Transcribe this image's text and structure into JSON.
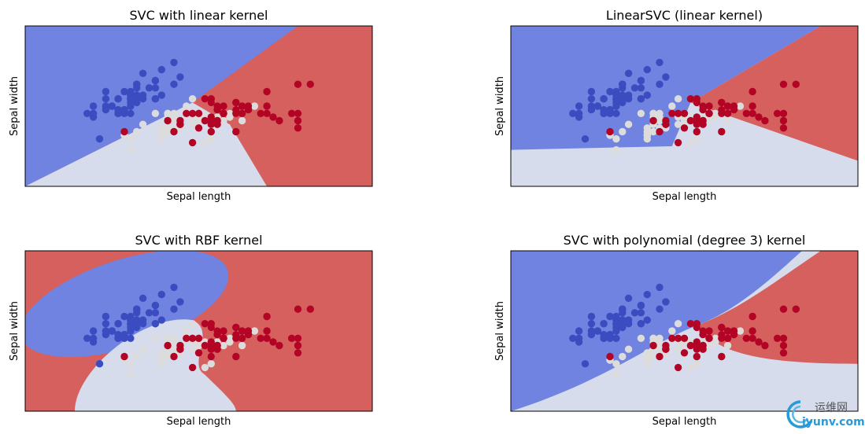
{
  "chart_data": [
    {
      "type": "scatter",
      "title": "SVC with linear kernel",
      "xlabel": "Sepal length",
      "ylabel": "Sepal width",
      "ticks_visible": false,
      "grid": false,
      "xlim": [
        3.3,
        8.9
      ],
      "ylim": [
        1.0,
        5.4
      ],
      "background": "decision-regions",
      "boundaries": [
        {
          "from": "setosa",
          "to": "versicolor",
          "points": [
            [
              3.3,
              1.0
            ],
            [
              6.0,
              3.3
            ]
          ]
        },
        {
          "from": "setosa",
          "to": "virginica",
          "points": [
            [
              6.0,
              3.3
            ],
            [
              7.7,
              5.4
            ]
          ]
        },
        {
          "from": "versicolor",
          "to": "virginica",
          "points": [
            [
              6.0,
              3.3
            ],
            [
              6.6,
              2.7
            ],
            [
              7.2,
              1.0
            ]
          ]
        }
      ]
    },
    {
      "type": "scatter",
      "title": "LinearSVC (linear kernel)",
      "xlabel": "Sepal length",
      "ylabel": "Sepal width",
      "ticks_visible": false,
      "grid": false,
      "xlim": [
        3.3,
        8.9
      ],
      "ylim": [
        1.0,
        5.4
      ],
      "background": "decision-regions",
      "boundaries": [
        {
          "from": "setosa",
          "to": "versicolor",
          "points": [
            [
              3.3,
              2.0
            ],
            [
              5.9,
              2.1
            ],
            [
              6.2,
              3.3
            ]
          ]
        },
        {
          "from": "setosa",
          "to": "virginica",
          "points": [
            [
              6.2,
              3.3
            ],
            [
              8.3,
              5.4
            ]
          ]
        },
        {
          "from": "versicolor",
          "to": "virginica",
          "points": [
            [
              6.2,
              3.3
            ],
            [
              8.9,
              1.7
            ]
          ]
        }
      ]
    },
    {
      "type": "scatter",
      "title": "SVC with RBF kernel",
      "xlabel": "Sepal length",
      "ylabel": "Sepal width",
      "ticks_visible": false,
      "grid": false,
      "xlim": [
        3.3,
        8.9
      ],
      "ylim": [
        1.0,
        5.4
      ],
      "background": "decision-regions"
    },
    {
      "type": "scatter",
      "title": "SVC with polynomial (degree 3) kernel",
      "xlabel": "Sepal length",
      "ylabel": "Sepal width",
      "ticks_visible": false,
      "grid": false,
      "xlim": [
        3.3,
        8.9
      ],
      "ylim": [
        1.0,
        5.4
      ],
      "background": "decision-regions"
    }
  ],
  "points": {
    "setosa": [
      [
        5.1,
        3.5
      ],
      [
        4.9,
        3.0
      ],
      [
        4.7,
        3.2
      ],
      [
        4.6,
        3.1
      ],
      [
        5.0,
        3.6
      ],
      [
        5.4,
        3.9
      ],
      [
        4.6,
        3.4
      ],
      [
        5.0,
        3.4
      ],
      [
        4.4,
        2.9
      ],
      [
        4.9,
        3.1
      ],
      [
        5.4,
        3.7
      ],
      [
        4.8,
        3.4
      ],
      [
        4.8,
        3.0
      ],
      [
        4.3,
        3.0
      ],
      [
        5.8,
        4.0
      ],
      [
        5.7,
        4.4
      ],
      [
        5.4,
        3.9
      ],
      [
        5.1,
        3.5
      ],
      [
        5.7,
        3.8
      ],
      [
        5.1,
        3.8
      ],
      [
        5.4,
        3.4
      ],
      [
        5.1,
        3.7
      ],
      [
        4.6,
        3.6
      ],
      [
        5.1,
        3.3
      ],
      [
        4.8,
        3.4
      ],
      [
        5.0,
        3.0
      ],
      [
        5.0,
        3.4
      ],
      [
        5.2,
        3.5
      ],
      [
        5.2,
        3.4
      ],
      [
        4.7,
        3.2
      ],
      [
        4.8,
        3.1
      ],
      [
        5.4,
        3.4
      ],
      [
        5.2,
        4.1
      ],
      [
        5.5,
        4.2
      ],
      [
        4.9,
        3.1
      ],
      [
        5.0,
        3.2
      ],
      [
        5.5,
        3.5
      ],
      [
        4.9,
        3.6
      ],
      [
        4.4,
        3.0
      ],
      [
        5.1,
        3.4
      ],
      [
        5.0,
        3.5
      ],
      [
        4.5,
        2.3
      ],
      [
        4.4,
        3.2
      ],
      [
        5.0,
        3.5
      ],
      [
        5.1,
        3.8
      ],
      [
        4.8,
        3.0
      ],
      [
        5.1,
        3.8
      ],
      [
        4.6,
        3.2
      ],
      [
        5.3,
        3.7
      ],
      [
        5.0,
        3.3
      ]
    ],
    "versicolor": [
      [
        7.0,
        3.2
      ],
      [
        6.4,
        3.2
      ],
      [
        6.9,
        3.1
      ],
      [
        5.5,
        2.3
      ],
      [
        6.5,
        2.8
      ],
      [
        5.7,
        2.8
      ],
      [
        6.3,
        3.3
      ],
      [
        4.9,
        2.4
      ],
      [
        6.6,
        2.9
      ],
      [
        5.2,
        2.7
      ],
      [
        5.0,
        2.0
      ],
      [
        5.9,
        3.0
      ],
      [
        6.0,
        2.2
      ],
      [
        6.1,
        2.9
      ],
      [
        5.6,
        2.9
      ],
      [
        6.7,
        3.1
      ],
      [
        5.6,
        3.0
      ],
      [
        5.8,
        2.7
      ],
      [
        6.2,
        2.2
      ],
      [
        5.6,
        2.5
      ],
      [
        5.9,
        3.2
      ],
      [
        6.1,
        2.8
      ],
      [
        6.3,
        2.5
      ],
      [
        6.1,
        2.8
      ],
      [
        6.4,
        2.9
      ],
      [
        6.6,
        3.0
      ],
      [
        6.8,
        2.8
      ],
      [
        6.7,
        3.0
      ],
      [
        6.0,
        2.9
      ],
      [
        5.7,
        2.6
      ],
      [
        5.5,
        2.4
      ],
      [
        5.5,
        2.4
      ],
      [
        5.8,
        2.7
      ],
      [
        6.0,
        2.7
      ],
      [
        5.4,
        3.0
      ],
      [
        6.0,
        3.4
      ],
      [
        6.7,
        3.1
      ],
      [
        6.3,
        2.3
      ],
      [
        5.6,
        3.0
      ],
      [
        5.5,
        2.5
      ],
      [
        5.5,
        2.6
      ],
      [
        6.1,
        3.0
      ],
      [
        5.8,
        2.6
      ],
      [
        5.0,
        2.3
      ],
      [
        5.6,
        2.7
      ],
      [
        5.7,
        3.0
      ],
      [
        5.7,
        2.9
      ],
      [
        6.2,
        2.9
      ],
      [
        5.1,
        2.5
      ],
      [
        5.7,
        2.8
      ]
    ],
    "virginica": [
      [
        6.3,
        3.3
      ],
      [
        5.8,
        2.7
      ],
      [
        7.1,
        3.0
      ],
      [
        6.3,
        2.9
      ],
      [
        6.5,
        3.0
      ],
      [
        7.6,
        3.0
      ],
      [
        4.9,
        2.5
      ],
      [
        7.3,
        2.9
      ],
      [
        6.7,
        2.5
      ],
      [
        7.2,
        3.6
      ],
      [
        6.5,
        3.2
      ],
      [
        6.4,
        2.7
      ],
      [
        6.8,
        3.0
      ],
      [
        5.7,
        2.5
      ],
      [
        5.8,
        2.8
      ],
      [
        6.4,
        3.2
      ],
      [
        6.5,
        3.0
      ],
      [
        7.7,
        3.8
      ],
      [
        7.7,
        2.6
      ],
      [
        6.0,
        2.2
      ],
      [
        6.9,
        3.2
      ],
      [
        5.6,
        2.8
      ],
      [
        7.7,
        2.8
      ],
      [
        6.3,
        2.7
      ],
      [
        6.7,
        3.3
      ],
      [
        7.2,
        3.2
      ],
      [
        6.2,
        2.8
      ],
      [
        6.1,
        3.0
      ],
      [
        6.4,
        2.8
      ],
      [
        7.2,
        3.0
      ],
      [
        7.4,
        2.8
      ],
      [
        7.9,
        3.8
      ],
      [
        6.4,
        2.8
      ],
      [
        6.3,
        2.8
      ],
      [
        6.1,
        2.6
      ],
      [
        7.7,
        3.0
      ],
      [
        6.3,
        3.4
      ],
      [
        6.4,
        3.1
      ],
      [
        6.0,
        3.0
      ],
      [
        6.9,
        3.1
      ],
      [
        6.7,
        3.1
      ],
      [
        6.9,
        3.1
      ],
      [
        5.8,
        2.7
      ],
      [
        6.8,
        3.2
      ],
      [
        6.7,
        3.3
      ],
      [
        6.7,
        3.0
      ],
      [
        6.3,
        2.5
      ],
      [
        6.5,
        3.0
      ],
      [
        6.2,
        3.4
      ],
      [
        5.9,
        3.0
      ]
    ]
  },
  "colors": {
    "setosa_point": "#3b4cc0",
    "versicolor_point": "#dddcdc",
    "virginica_point": "#b40426",
    "setosa_region": "#7083e0",
    "versicolor_region": "#d6dcec",
    "virginica_region": "#d5605e"
  },
  "watermark": {
    "text_cn": "运维网",
    "text_url": "iyunv.com"
  }
}
